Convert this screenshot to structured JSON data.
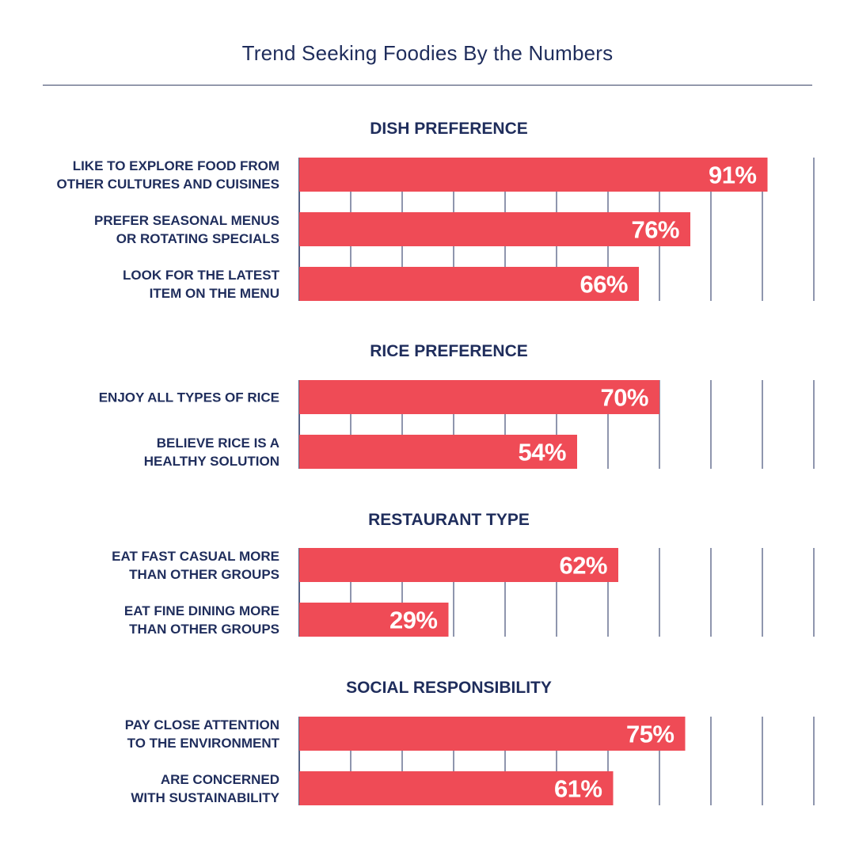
{
  "title": "Trend Seeking Foodies By the Numbers",
  "colors": {
    "bar": "#ef4b56",
    "text": "#1f2d5c",
    "grid": "#1f2d5c",
    "value_text": "#ffffff"
  },
  "chart_data": [
    {
      "type": "bar",
      "orientation": "horizontal",
      "title": "DISH PREFERENCE",
      "categories": [
        [
          "LIKE TO EXPLORE FOOD FROM",
          "OTHER CULTURES AND CUISINES"
        ],
        [
          "PREFER SEASONAL MENUS",
          "OR ROTATING SPECIALS"
        ],
        [
          "LOOK FOR THE LATEST",
          "ITEM ON THE MENU"
        ]
      ],
      "values": [
        91,
        76,
        66
      ],
      "value_labels": [
        "91%",
        "76%",
        "66%"
      ],
      "xlim": [
        0,
        100
      ],
      "grid": true
    },
    {
      "type": "bar",
      "orientation": "horizontal",
      "title": "RICE PREFERENCE",
      "categories": [
        [
          "ENJOY ALL TYPES OF RICE"
        ],
        [
          "BELIEVE RICE IS A",
          "HEALTHY SOLUTION"
        ]
      ],
      "values": [
        70,
        54
      ],
      "value_labels": [
        "70%",
        "54%"
      ],
      "xlim": [
        0,
        100
      ],
      "grid": true
    },
    {
      "type": "bar",
      "orientation": "horizontal",
      "title": "RESTAURANT TYPE",
      "categories": [
        [
          "EAT FAST CASUAL MORE",
          "THAN OTHER GROUPS"
        ],
        [
          "EAT FINE DINING MORE",
          "THAN OTHER GROUPS"
        ]
      ],
      "values": [
        62,
        29
      ],
      "value_labels": [
        "62%",
        "29%"
      ],
      "xlim": [
        0,
        100
      ],
      "grid": true
    },
    {
      "type": "bar",
      "orientation": "horizontal",
      "title": "SOCIAL RESPONSIBILITY",
      "categories": [
        [
          "PAY CLOSE ATTENTION",
          "TO THE ENVIRONMENT"
        ],
        [
          "ARE CONCERNED",
          "WITH SUSTAINABILITY"
        ]
      ],
      "values": [
        75,
        61
      ],
      "value_labels": [
        "75%",
        "61%"
      ],
      "xlim": [
        0,
        100
      ],
      "grid": true
    }
  ]
}
